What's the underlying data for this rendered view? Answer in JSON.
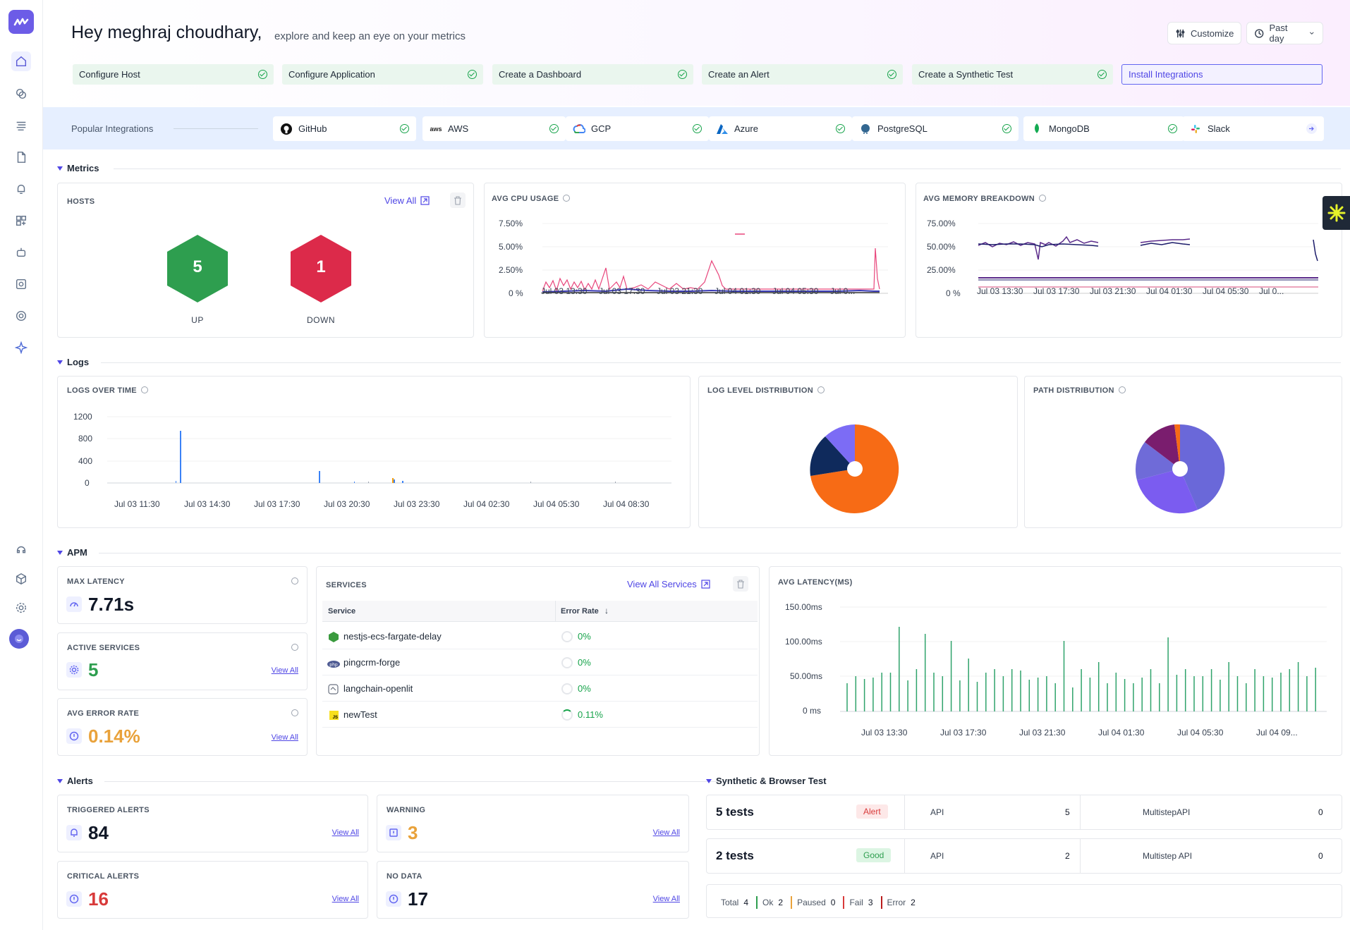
{
  "greeting": {
    "title": "Hey meghraj choudhary,",
    "subtitle": "explore and keep an eye on your metrics"
  },
  "toolbar": {
    "customize": "Customize",
    "range": "Past day"
  },
  "steps": [
    "Configure Host",
    "Configure Application",
    "Create a Dashboard",
    "Create an Alert",
    "Create a Synthetic Test",
    "Install Integrations"
  ],
  "integrations": {
    "label": "Popular Integrations",
    "items": [
      "GitHub",
      "AWS",
      "GCP",
      "Azure",
      "PostgreSQL",
      "MongoDB",
      "Slack"
    ]
  },
  "sections": {
    "metrics": "Metrics",
    "logs": "Logs",
    "apm": "APM",
    "alerts": "Alerts",
    "synthetic": "Synthetic & Browser Test"
  },
  "hosts": {
    "title": "HOSTS",
    "view_all": "View All",
    "up_value": "5",
    "up_label": "UP",
    "down_value": "1",
    "down_label": "DOWN"
  },
  "cpu": {
    "title": "AVG CPU USAGE",
    "y_ticks": [
      "7.50%",
      "5.00%",
      "2.50%",
      "0 %"
    ],
    "x_ticks": [
      "Jul 03 13:30",
      "Jul 03 17:30",
      "Jul 03 21:30",
      "Jul 04 01:30",
      "Jul 04 05:30",
      "Jul 0..."
    ]
  },
  "memory": {
    "title": "AVG MEMORY BREAKDOWN",
    "y_ticks": [
      "75.00%",
      "50.00%",
      "25.00%",
      "0 %"
    ],
    "x_ticks": [
      "Jul 03 13:30",
      "Jul 03 17:30",
      "Jul 03 21:30",
      "Jul 04 01:30",
      "Jul 04 05:30",
      "Jul 0..."
    ]
  },
  "logs_over_time": {
    "title": "LOGS OVER TIME",
    "y_ticks": [
      "1200",
      "800",
      "400",
      "0"
    ],
    "x_ticks": [
      "Jul 03 11:30",
      "Jul 03 14:30",
      "Jul 03 17:30",
      "Jul 03 20:30",
      "Jul 03 23:30",
      "Jul 04 02:30",
      "Jul 04 05:30",
      "Jul 04 08:30"
    ]
  },
  "log_level": {
    "title": "LOG LEVEL DISTRIBUTION"
  },
  "path_dist": {
    "title": "PATH DISTRIBUTION"
  },
  "apm": {
    "max_latency": {
      "title": "MAX LATENCY",
      "value": "7.71s"
    },
    "active_services": {
      "title": "ACTIVE SERVICES",
      "value": "5",
      "view_all": "View All"
    },
    "avg_error": {
      "title": "AVG ERROR RATE",
      "value": "0.14%",
      "view_all": "View All"
    },
    "services": {
      "title": "SERVICES",
      "view_all": "View All Services",
      "col_service": "Service",
      "col_error": "Error Rate",
      "rows": [
        {
          "name": "nestjs-ecs-fargate-delay",
          "rate": "0%"
        },
        {
          "name": "pingcrm-forge",
          "rate": "0%"
        },
        {
          "name": "langchain-openlit",
          "rate": "0%"
        },
        {
          "name": "newTest",
          "rate": "0.11%"
        }
      ]
    },
    "latency": {
      "title": "AVG LATENCY(MS)",
      "y_ticks": [
        "150.00ms",
        "100.00ms",
        "50.00ms",
        "0 ms"
      ],
      "x_ticks": [
        "Jul 03 13:30",
        "Jul 03 17:30",
        "Jul 03 21:30",
        "Jul 04 01:30",
        "Jul 04 05:30",
        "Jul 04 09..."
      ]
    }
  },
  "alerts": {
    "triggered": {
      "title": "TRIGGERED ALERTS",
      "value": "84",
      "view_all": "View All"
    },
    "warning": {
      "title": "WARNING",
      "value": "3",
      "view_all": "View All"
    },
    "critical": {
      "title": "CRITICAL ALERTS",
      "value": "16",
      "view_all": "View All"
    },
    "nodata": {
      "title": "NO DATA",
      "value": "17",
      "view_all": "View All"
    }
  },
  "synthetic": {
    "rows": [
      {
        "tests": "5 tests",
        "status": "Alert",
        "type1": "API",
        "count1": "5",
        "type2": "MultistepAPI",
        "count2": "0"
      },
      {
        "tests": "2 tests",
        "status": "Good",
        "type1": "API",
        "count1": "2",
        "type2": "Multistep API",
        "count2": "0"
      }
    ],
    "summary": {
      "total_label": "Total",
      "total": "4",
      "ok_label": "Ok",
      "ok": "2",
      "paused_label": "Paused",
      "paused": "0",
      "fail_label": "Fail",
      "fail": "3",
      "error_label": "Error",
      "error": "2"
    }
  },
  "colors": {
    "accent": "#6366f1",
    "up": "#2e9e4f",
    "down": "#dc2a4a",
    "warning": "#e9a23b",
    "critical": "#d83a3a"
  }
}
